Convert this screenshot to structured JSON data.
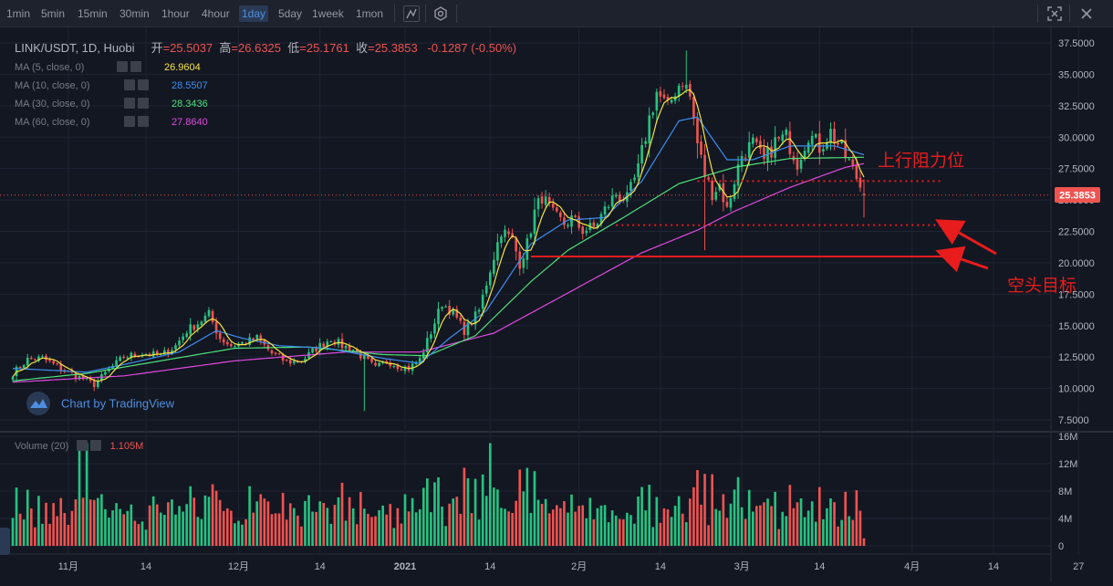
{
  "toolbar": {
    "timeframes": [
      "1min",
      "5min",
      "15min",
      "30min",
      "1hour",
      "4hour",
      "1day",
      "5day",
      "1week",
      "1mon"
    ],
    "active_timeframe": "1day",
    "icons": [
      "chart-type-icon",
      "settings-hexagon-icon",
      "fullscreen-icon",
      "close-icon"
    ]
  },
  "legend": {
    "symbol": "LINK/USDT, 1D, Huobi",
    "open_label": "开",
    "open_value": "=25.5037",
    "high_label": "高",
    "high_value": "=26.6325",
    "low_label": "低",
    "low_value": "=25.1761",
    "close_label": "收",
    "close_value": "=25.3853",
    "change": "-0.1287 (-0.50%)",
    "ma": [
      {
        "label": "MA (5, close, 0)",
        "value": "26.9604",
        "color": "#f5e342"
      },
      {
        "label": "MA (10, close, 0)",
        "value": "28.5507",
        "color": "#3d8ef0"
      },
      {
        "label": "MA (30, close, 0)",
        "value": "28.3436",
        "color": "#4ee07a"
      },
      {
        "label": "MA (60, close, 0)",
        "value": "27.8640",
        "color": "#e04ae0"
      }
    ],
    "volume_label": "Volume (20)",
    "volume_value": "1.105M"
  },
  "watermark": "Chart by TradingView",
  "price_tag": "25.3853",
  "annotations": {
    "resistance": "上行阻力位",
    "short_target": "空头目标"
  },
  "chart_data": {
    "type": "candlestick",
    "title": "LINK/USDT, 1D, Huobi",
    "last_close": 25.3853,
    "y_ticks": [
      "37.5000",
      "35.0000",
      "32.5000",
      "30.0000",
      "27.5000",
      "25.0000",
      "22.5000",
      "20.0000",
      "17.5000",
      "15.0000",
      "12.5000",
      "10.0000",
      "7.5000"
    ],
    "ylim": [
      6.8,
      38.8
    ],
    "volume_ticks": [
      "16M",
      "12M",
      "8M",
      "4M",
      "0"
    ],
    "volume_ylim": [
      0,
      16
    ],
    "x_ticks": [
      "11月",
      "14",
      "12月",
      "14",
      "2021",
      "14",
      "2月",
      "14",
      "3月",
      "14",
      "4月",
      "14",
      "27"
    ],
    "colors": {
      "up": "#26c281",
      "down": "#ef5350",
      "ma5": "#f5e342",
      "ma10": "#3d8ef0",
      "ma30": "#4ee07a",
      "ma60": "#e04ae0"
    },
    "levels": [
      {
        "name": "resistance",
        "price": 26.5,
        "style": "dotted"
      },
      {
        "name": "support",
        "price": 23.0,
        "style": "dotted"
      },
      {
        "name": "short-target",
        "price": 20.5,
        "style": "solid"
      }
    ],
    "anchors": [
      {
        "day": 0,
        "price": 11.2
      },
      {
        "day": 4,
        "price": 12.3
      },
      {
        "day": 8,
        "price": 12.4
      },
      {
        "day": 14,
        "price": 11.4
      },
      {
        "day": 18,
        "price": 10.9
      },
      {
        "day": 22,
        "price": 10.3
      },
      {
        "day": 26,
        "price": 11.5
      },
      {
        "day": 30,
        "price": 12.5
      },
      {
        "day": 35,
        "price": 12.8
      },
      {
        "day": 40,
        "price": 12.6
      },
      {
        "day": 44,
        "price": 13.4
      },
      {
        "day": 47,
        "price": 14.6
      },
      {
        "day": 50,
        "price": 15.2
      },
      {
        "day": 53,
        "price": 15.9
      },
      {
        "day": 56,
        "price": 14.0
      },
      {
        "day": 59,
        "price": 13.4
      },
      {
        "day": 62,
        "price": 13.6
      },
      {
        "day": 66,
        "price": 14.0
      },
      {
        "day": 70,
        "price": 12.8
      },
      {
        "day": 74,
        "price": 12.1
      },
      {
        "day": 78,
        "price": 12.2
      },
      {
        "day": 82,
        "price": 13.2
      },
      {
        "day": 86,
        "price": 14.0
      },
      {
        "day": 89,
        "price": 13.4
      },
      {
        "day": 92,
        "price": 13.1
      },
      {
        "day": 95,
        "price": 12.4
      },
      {
        "day": 98,
        "price": 11.6
      },
      {
        "day": 101,
        "price": 12.2
      },
      {
        "day": 104,
        "price": 11.8
      },
      {
        "day": 107,
        "price": 11.6
      },
      {
        "day": 110,
        "price": 12.3
      },
      {
        "day": 113,
        "price": 14.5
      },
      {
        "day": 116,
        "price": 16.8
      },
      {
        "day": 119,
        "price": 16.0
      },
      {
        "day": 122,
        "price": 14.6
      },
      {
        "day": 124,
        "price": 15.3
      },
      {
        "day": 126,
        "price": 16.2
      },
      {
        "day": 129,
        "price": 19.5
      },
      {
        "day": 132,
        "price": 22.6
      },
      {
        "day": 135,
        "price": 21.8
      },
      {
        "day": 137,
        "price": 20.0
      },
      {
        "day": 139,
        "price": 21.5
      },
      {
        "day": 141,
        "price": 24.0
      },
      {
        "day": 143,
        "price": 25.3
      },
      {
        "day": 146,
        "price": 23.8
      },
      {
        "day": 149,
        "price": 23.1
      },
      {
        "day": 151,
        "price": 23.5
      },
      {
        "day": 154,
        "price": 22.6
      },
      {
        "day": 157,
        "price": 22.8
      },
      {
        "day": 160,
        "price": 24.2
      },
      {
        "day": 163,
        "price": 25.5
      },
      {
        "day": 166,
        "price": 25.0
      },
      {
        "day": 169,
        "price": 27.4
      },
      {
        "day": 172,
        "price": 31.5
      },
      {
        "day": 174,
        "price": 33.6
      },
      {
        "day": 177,
        "price": 32.2
      },
      {
        "day": 179,
        "price": 33.8
      },
      {
        "day": 181,
        "price": 34.6
      },
      {
        "day": 183,
        "price": 33.2
      },
      {
        "day": 185,
        "price": 29.5
      },
      {
        "day": 187,
        "price": 27.0
      },
      {
        "day": 189,
        "price": 25.6
      },
      {
        "day": 191,
        "price": 26.2
      },
      {
        "day": 193,
        "price": 24.2
      },
      {
        "day": 195,
        "price": 26.6
      },
      {
        "day": 197,
        "price": 28.6
      },
      {
        "day": 200,
        "price": 29.5
      },
      {
        "day": 203,
        "price": 28.0
      },
      {
        "day": 206,
        "price": 29.6
      },
      {
        "day": 209,
        "price": 30.0
      },
      {
        "day": 212,
        "price": 28.0
      },
      {
        "day": 215,
        "price": 30.3
      },
      {
        "day": 218,
        "price": 29.2
      },
      {
        "day": 221,
        "price": 30.4
      },
      {
        "day": 224,
        "price": 29.0
      },
      {
        "day": 226,
        "price": 28.0
      },
      {
        "day": 228,
        "price": 26.8
      },
      {
        "day": 230,
        "price": 25.4
      }
    ],
    "ma_anchors": {
      "ma10": [
        {
          "day": 0,
          "price": 11.6
        },
        {
          "day": 20,
          "price": 11.3
        },
        {
          "day": 30,
          "price": 11.9
        },
        {
          "day": 45,
          "price": 12.9
        },
        {
          "day": 55,
          "price": 14.6
        },
        {
          "day": 62,
          "price": 14.0
        },
        {
          "day": 72,
          "price": 13.4
        },
        {
          "day": 85,
          "price": 13.2
        },
        {
          "day": 100,
          "price": 12.4
        },
        {
          "day": 110,
          "price": 12.0
        },
        {
          "day": 118,
          "price": 14.0
        },
        {
          "day": 128,
          "price": 16.2
        },
        {
          "day": 140,
          "price": 21.5
        },
        {
          "day": 150,
          "price": 23.4
        },
        {
          "day": 160,
          "price": 23.6
        },
        {
          "day": 170,
          "price": 26.5
        },
        {
          "day": 180,
          "price": 31.3
        },
        {
          "day": 185,
          "price": 31.6
        },
        {
          "day": 193,
          "price": 28.2
        },
        {
          "day": 200,
          "price": 28.2
        },
        {
          "day": 210,
          "price": 29.3
        },
        {
          "day": 222,
          "price": 29.3
        },
        {
          "day": 230,
          "price": 28.6
        }
      ],
      "ma30": [
        {
          "day": 0,
          "price": 10.6
        },
        {
          "day": 20,
          "price": 11.2
        },
        {
          "day": 40,
          "price": 12.2
        },
        {
          "day": 60,
          "price": 13.2
        },
        {
          "day": 80,
          "price": 13.3
        },
        {
          "day": 100,
          "price": 12.7
        },
        {
          "day": 112,
          "price": 12.6
        },
        {
          "day": 125,
          "price": 14.2
        },
        {
          "day": 140,
          "price": 18.5
        },
        {
          "day": 150,
          "price": 21.0
        },
        {
          "day": 165,
          "price": 23.6
        },
        {
          "day": 180,
          "price": 26.3
        },
        {
          "day": 195,
          "price": 27.6
        },
        {
          "day": 210,
          "price": 28.3
        },
        {
          "day": 230,
          "price": 28.4
        }
      ],
      "ma60": [
        {
          "day": 0,
          "price": 10.5
        },
        {
          "day": 30,
          "price": 11.0
        },
        {
          "day": 60,
          "price": 12.2
        },
        {
          "day": 90,
          "price": 12.9
        },
        {
          "day": 110,
          "price": 12.9
        },
        {
          "day": 130,
          "price": 14.4
        },
        {
          "day": 150,
          "price": 17.6
        },
        {
          "day": 170,
          "price": 20.8
        },
        {
          "day": 185,
          "price": 22.6
        },
        {
          "day": 195,
          "price": 24.1
        },
        {
          "day": 210,
          "price": 26.0
        },
        {
          "day": 225,
          "price": 27.6
        },
        {
          "day": 230,
          "price": 27.9
        }
      ]
    }
  }
}
